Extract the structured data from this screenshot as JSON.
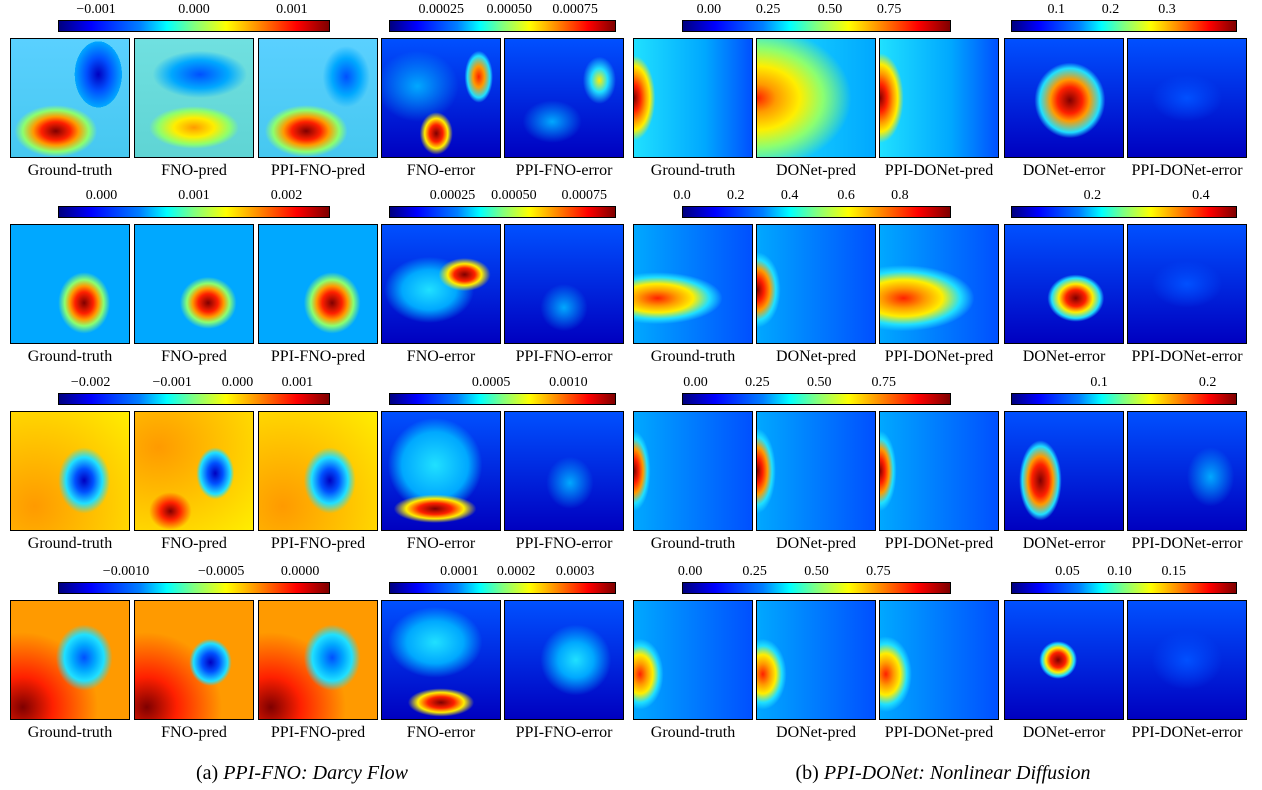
{
  "figure_a": {
    "caption_prefix": "(a)",
    "caption_title": "PPI-FNO: Darcy Flow",
    "rows": [
      {
        "pred_ticks": [
          "−0.001",
          "0.000",
          "0.001"
        ],
        "err_ticks": [
          "0.00025",
          "0.00050",
          "0.00075"
        ],
        "labels": [
          "Ground-truth",
          "FNO-pred",
          "PPI-FNO-pred",
          "FNO-error",
          "PPI-FNO-error"
        ]
      },
      {
        "pred_ticks": [
          "0.000",
          "0.001",
          "0.002"
        ],
        "err_ticks": [
          "0.00025",
          "0.00050",
          "0.00075"
        ],
        "labels": [
          "Ground-truth",
          "FNO-pred",
          "PPI-FNO-pred",
          "FNO-error",
          "PPI-FNO-error"
        ]
      },
      {
        "pred_ticks": [
          "−0.002",
          "−0.001",
          "0.000",
          "0.001"
        ],
        "err_ticks": [
          "0.0005",
          "0.0010"
        ],
        "labels": [
          "Ground-truth",
          "FNO-pred",
          "PPI-FNO-pred",
          "FNO-error",
          "PPI-FNO-error"
        ]
      },
      {
        "pred_ticks": [
          "−0.0010",
          "−0.0005",
          "0.0000"
        ],
        "err_ticks": [
          "0.0001",
          "0.0002",
          "0.0003"
        ],
        "labels": [
          "Ground-truth",
          "FNO-pred",
          "PPI-FNO-pred",
          "FNO-error",
          "PPI-FNO-error"
        ]
      }
    ]
  },
  "figure_b": {
    "caption_prefix": "(b)",
    "caption_title": "PPI-DONet: Nonlinear Diffusion",
    "rows": [
      {
        "pred_ticks": [
          "0.00",
          "0.25",
          "0.50",
          "0.75"
        ],
        "err_ticks": [
          "0.1",
          "0.2",
          "0.3"
        ],
        "labels": [
          "Ground-truth",
          "DONet-pred",
          "PPI-DONet-pred",
          "DONet-error",
          "PPI-DONet-error"
        ]
      },
      {
        "pred_ticks": [
          "0.0",
          "0.2",
          "0.4",
          "0.6",
          "0.8"
        ],
        "err_ticks": [
          "0.2",
          "0.4"
        ],
        "labels": [
          "Ground-truth",
          "DONet-pred",
          "PPI-DONet-pred",
          "DONet-error",
          "PPI-DONet-error"
        ]
      },
      {
        "pred_ticks": [
          "0.00",
          "0.25",
          "0.50",
          "0.75"
        ],
        "err_ticks": [
          "0.1",
          "0.2"
        ],
        "labels": [
          "Ground-truth",
          "DONet-pred",
          "PPI-DONet-pred",
          "DONet-error",
          "PPI-DONet-error"
        ]
      },
      {
        "pred_ticks": [
          "0.00",
          "0.25",
          "0.50",
          "0.75"
        ],
        "err_ticks": [
          "0.05",
          "0.10",
          "0.15"
        ],
        "labels": [
          "Ground-truth",
          "DONet-pred",
          "PPI-DONet-pred",
          "DONet-error",
          "PPI-DONet-error"
        ]
      }
    ]
  }
}
